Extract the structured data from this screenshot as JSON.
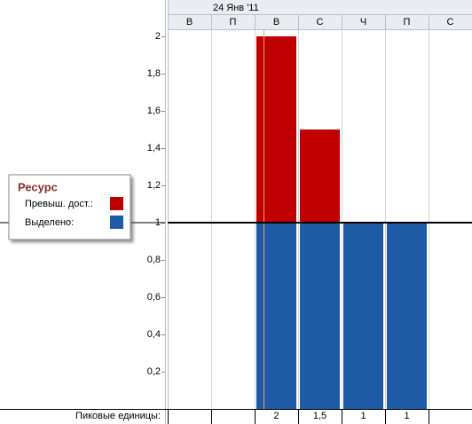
{
  "chart_data": {
    "type": "bar",
    "date_label": "24 Янв '11",
    "categories": [
      "В",
      "П",
      "В",
      "С",
      "Ч",
      "П",
      "С"
    ],
    "legend_title": "Ресурс",
    "series": [
      {
        "name": "Превыш. дост.:",
        "color": "#c00000",
        "values": [
          null,
          null,
          1,
          0.5,
          null,
          null,
          null
        ]
      },
      {
        "name": "Выделено:",
        "color": "#1f5aa6",
        "values": [
          null,
          null,
          1,
          1,
          1,
          1,
          null
        ]
      }
    ],
    "availability": 1,
    "ylim": [
      0,
      2
    ],
    "yticks": [
      {
        "value": 0.2,
        "label": "0,2"
      },
      {
        "value": 0.4,
        "label": "0,4"
      },
      {
        "value": 0.6,
        "label": "0,6"
      },
      {
        "value": 0.8,
        "label": "0,8"
      },
      1,
      {
        "value": 1.2,
        "label": "1,2"
      },
      {
        "value": 1.4,
        "label": "1,4"
      },
      {
        "value": 1.6,
        "label": "1,6"
      },
      {
        "value": 1.8,
        "label": "1,8"
      },
      2
    ],
    "peak": {
      "label": "Пиковые единицы:",
      "values": [
        null,
        null,
        2,
        1.5,
        1,
        1,
        null
      ],
      "value_labels": [
        null,
        null,
        "2",
        "1,5",
        "1",
        "1",
        null
      ]
    }
  }
}
